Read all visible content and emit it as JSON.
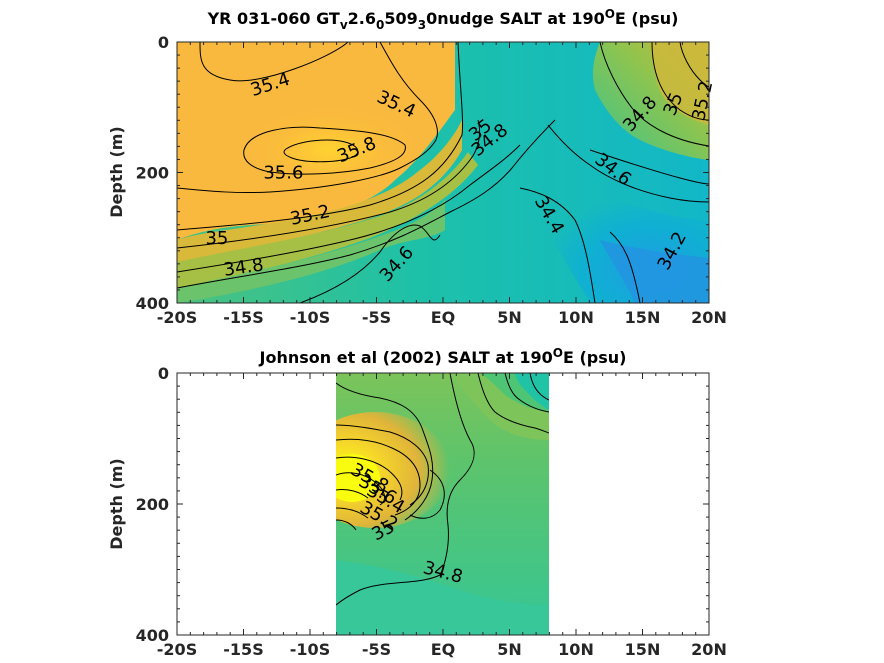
{
  "chart_data": [
    {
      "type": "contour",
      "title_parts": {
        "a": "YR 031-060 GT",
        "b": "v",
        "c": "2.6",
        "d": "0",
        "e": "509",
        "f": "3",
        "g": "0nudge SALT at 190",
        "h": "O",
        "i": "E (psu)"
      },
      "ylabel": "Depth (m)",
      "xlim": [
        -20,
        20
      ],
      "ylim": [
        0,
        400
      ],
      "y_reversed": true,
      "x_tick_values": [
        -20,
        -15,
        -10,
        -5,
        0,
        5,
        10,
        15,
        20
      ],
      "x_tick_labels": [
        "-20S",
        "-15S",
        "-10S",
        "-5S",
        "EQ",
        "5N",
        "10N",
        "15N",
        "20N"
      ],
      "y_tick_values": [
        0,
        200,
        400
      ],
      "y_tick_labels": [
        "0",
        "200",
        "400"
      ],
      "data_extent_x": [
        -20,
        20
      ],
      "contour_labels": [
        {
          "text": "35.4",
          "x": -13,
          "y": 65,
          "angle": -18
        },
        {
          "text": "35.4",
          "x": -3.5,
          "y": 95,
          "angle": 25
        },
        {
          "text": "35.8",
          "x": -6.5,
          "y": 165,
          "angle": -22
        },
        {
          "text": "35.6",
          "x": -12,
          "y": 200,
          "angle": 0
        },
        {
          "text": "35.2",
          "x": -10,
          "y": 265,
          "angle": -12
        },
        {
          "text": "35",
          "x": -17,
          "y": 300,
          "angle": 0
        },
        {
          "text": "34.8",
          "x": -15,
          "y": 345,
          "angle": -8
        },
        {
          "text": "34.6",
          "x": -3.5,
          "y": 340,
          "angle": -48
        },
        {
          "text": "35",
          "x": 2.8,
          "y": 135,
          "angle": -38
        },
        {
          "text": "34.8",
          "x": 3.5,
          "y": 150,
          "angle": -38
        },
        {
          "text": "34.4",
          "x": 8,
          "y": 265,
          "angle": 60
        },
        {
          "text": "34.6",
          "x": 12.8,
          "y": 195,
          "angle": 38
        },
        {
          "text": "34.8",
          "x": 14.8,
          "y": 110,
          "angle": -48
        },
        {
          "text": "35",
          "x": 17.3,
          "y": 95,
          "angle": -68
        },
        {
          "text": "35.2",
          "x": 19.5,
          "y": 90,
          "angle": -78
        },
        {
          "text": "34.2",
          "x": 17.2,
          "y": 320,
          "angle": -62
        }
      ]
    },
    {
      "type": "contour",
      "title_parts": {
        "a": "Johnson et al (2002) SALT at 190",
        "h": "O",
        "i": "E (psu)"
      },
      "ylabel": "Depth (m)",
      "xlim": [
        -20,
        20
      ],
      "ylim": [
        0,
        400
      ],
      "y_reversed": true,
      "x_tick_values": [
        -20,
        -15,
        -10,
        -5,
        0,
        5,
        10,
        15,
        20
      ],
      "x_tick_labels": [
        "-20S",
        "-15S",
        "-10S",
        "-5S",
        "EQ",
        "5N",
        "10N",
        "15N",
        "20N"
      ],
      "y_tick_values": [
        0,
        200,
        400
      ],
      "y_tick_labels": [
        "0",
        "200",
        "400"
      ],
      "data_extent_x": [
        -8,
        8
      ],
      "contour_labels": [
        {
          "text": "35.8",
          "x": -5.5,
          "y": 160,
          "angle": 30
        },
        {
          "text": "35.6",
          "x": -4.9,
          "y": 178,
          "angle": 30
        },
        {
          "text": "35.4",
          "x": -4.3,
          "y": 192,
          "angle": 30
        },
        {
          "text": "35.2",
          "x": -4.8,
          "y": 218,
          "angle": 30
        },
        {
          "text": "35",
          "x": -4.5,
          "y": 240,
          "angle": -28
        },
        {
          "text": "34.8",
          "x": 0,
          "y": 304,
          "angle": 15
        }
      ]
    }
  ],
  "colors": {
    "salt_high": "#f9fb0e",
    "salt_orange": "#fbb840",
    "salt_mid": "#3ac38c",
    "salt_cyan": "#05bec4",
    "salt_low": "#2595e0",
    "axis": "#262626"
  }
}
